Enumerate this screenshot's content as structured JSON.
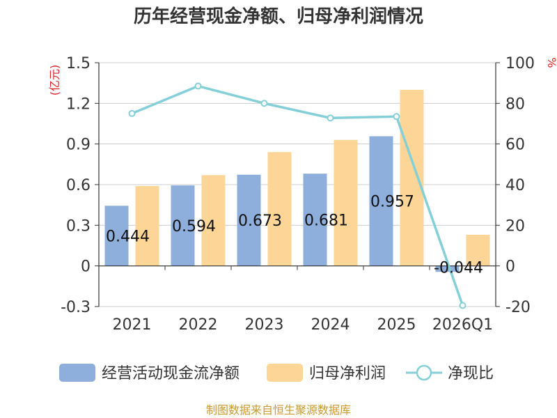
{
  "chart_data": {
    "type": "bar",
    "title": "历年经营现金净额、归母净利润情况",
    "categories": [
      "2021",
      "2022",
      "2023",
      "2024",
      "2025",
      "2026Q1"
    ],
    "series": [
      {
        "name": "经营活动现金流净额",
        "type": "bar",
        "axis": "left",
        "color": "#8eaedb",
        "values": [
          0.444,
          0.594,
          0.673,
          0.681,
          0.957,
          -0.044
        ]
      },
      {
        "name": "归母净利润",
        "type": "bar",
        "axis": "left",
        "color": "#fdd697",
        "values": [
          0.59,
          0.67,
          0.84,
          0.93,
          1.3,
          0.23
        ]
      },
      {
        "name": "净现比",
        "type": "line",
        "axis": "right",
        "color": "#85cfd8",
        "values": [
          75,
          88.5,
          80,
          72.8,
          73.5,
          -19.5
        ]
      }
    ],
    "data_labels": [
      "0.444",
      "0.594",
      "0.673",
      "0.681",
      "0.957",
      "-0.044"
    ],
    "y_left": {
      "label": "(亿元)",
      "ylim": [
        -0.3,
        1.5
      ],
      "ticks": [
        "1.5",
        "1.2",
        "0.9",
        "0.6",
        "0.3",
        "0",
        "-0.3"
      ]
    },
    "y_right": {
      "label": "%",
      "ylim": [
        -20,
        100
      ],
      "ticks": [
        "100",
        "80",
        "60",
        "40",
        "20",
        "0",
        "-20"
      ]
    },
    "grid": true,
    "legend_position": "bottom"
  },
  "source_text": "制图数据来自恒生聚源数据库"
}
